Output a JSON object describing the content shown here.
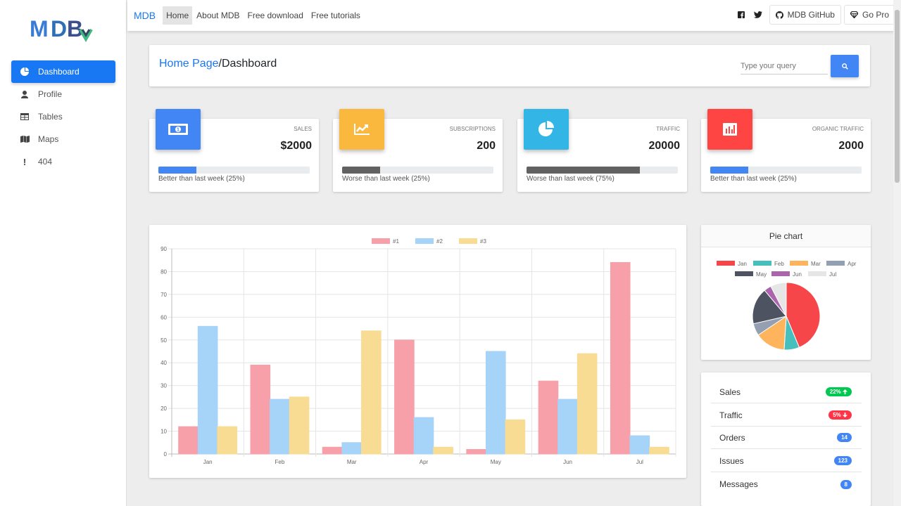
{
  "brand": "MDB",
  "sidebar": {
    "items": [
      {
        "label": "Dashboard",
        "icon": "chart-pie-icon",
        "active": true
      },
      {
        "label": "Profile",
        "icon": "user-icon"
      },
      {
        "label": "Tables",
        "icon": "table-icon"
      },
      {
        "label": "Maps",
        "icon": "map-icon"
      },
      {
        "label": "404",
        "icon": "exclamation-icon"
      }
    ]
  },
  "navbar": {
    "links": [
      "Home",
      "About MDB",
      "Free download",
      "Free tutorials"
    ],
    "github": "MDB GitHub",
    "pro": "Go Pro"
  },
  "breadcrumb": {
    "home": "Home Page",
    "separator": "/",
    "current": "Dashboard"
  },
  "search": {
    "placeholder": "Type your query"
  },
  "stats": [
    {
      "label": "Sales",
      "value": "$2000",
      "progress": 0.25,
      "note": "Better than last week (25%)",
      "icon_color": "#4285f4",
      "bar_color": "#4285f4",
      "icon": "money-icon"
    },
    {
      "label": "Subscriptions",
      "value": "200",
      "progress": 0.25,
      "note": "Worse than last week (25%)",
      "icon_color": "#fbb83e",
      "bar_color": "#616161",
      "icon": "chart-line-icon"
    },
    {
      "label": "Traffic",
      "value": "20000",
      "progress": 0.75,
      "note": "Worse than last week (75%)",
      "icon_color": "#33b5e5",
      "bar_color": "#616161",
      "icon": "chart-pie-icon"
    },
    {
      "label": "Organic Traffic",
      "value": "2000",
      "progress": 0.25,
      "note": "Better than last week (25%)",
      "icon_color": "#ff4444",
      "bar_color": "#4285f4",
      "icon": "chart-bar-icon"
    }
  ],
  "chart_data": [
    {
      "type": "bar",
      "categories": [
        "Jan",
        "Feb",
        "Mar",
        "Apr",
        "May",
        "Jun",
        "Jul"
      ],
      "series": [
        {
          "name": "#1",
          "values": [
            12,
            39,
            3,
            50,
            2,
            32,
            84
          ],
          "color": "#f7a0a9"
        },
        {
          "name": "#2",
          "values": [
            56,
            24,
            5,
            16,
            45,
            24,
            8
          ],
          "color": "#a6d3f8"
        },
        {
          "name": "#3",
          "values": [
            12,
            25,
            54,
            3,
            15,
            44,
            3
          ],
          "color": "#f9dc94"
        }
      ],
      "ylim": [
        0,
        90
      ],
      "yticks": [
        0,
        10,
        20,
        30,
        40,
        50,
        60,
        70,
        80,
        90
      ],
      "grid": true,
      "legend": "top"
    },
    {
      "type": "pie",
      "title": "Pie chart",
      "categories": [
        "Jan",
        "Feb",
        "Mar",
        "Apr",
        "May",
        "Jun",
        "Jul"
      ],
      "values": [
        300,
        50,
        100,
        40,
        120,
        24,
        52
      ],
      "colors": [
        "#f7464a",
        "#46bfbd",
        "#fdb45c",
        "#949fb1",
        "#4d5360",
        "#ac64ad",
        "#e6e6e6"
      ],
      "legend": "top"
    }
  ],
  "list": [
    {
      "label": "Sales",
      "badge": "22%",
      "arrow": "up",
      "color": "#00c851"
    },
    {
      "label": "Traffic",
      "badge": "5%",
      "arrow": "down",
      "color": "#ff3547"
    },
    {
      "label": "Orders",
      "badge": "14",
      "color": "#4285f4"
    },
    {
      "label": "Issues",
      "badge": "123",
      "color": "#4285f4"
    },
    {
      "label": "Messages",
      "badge": "8",
      "color": "#4285f4"
    }
  ]
}
